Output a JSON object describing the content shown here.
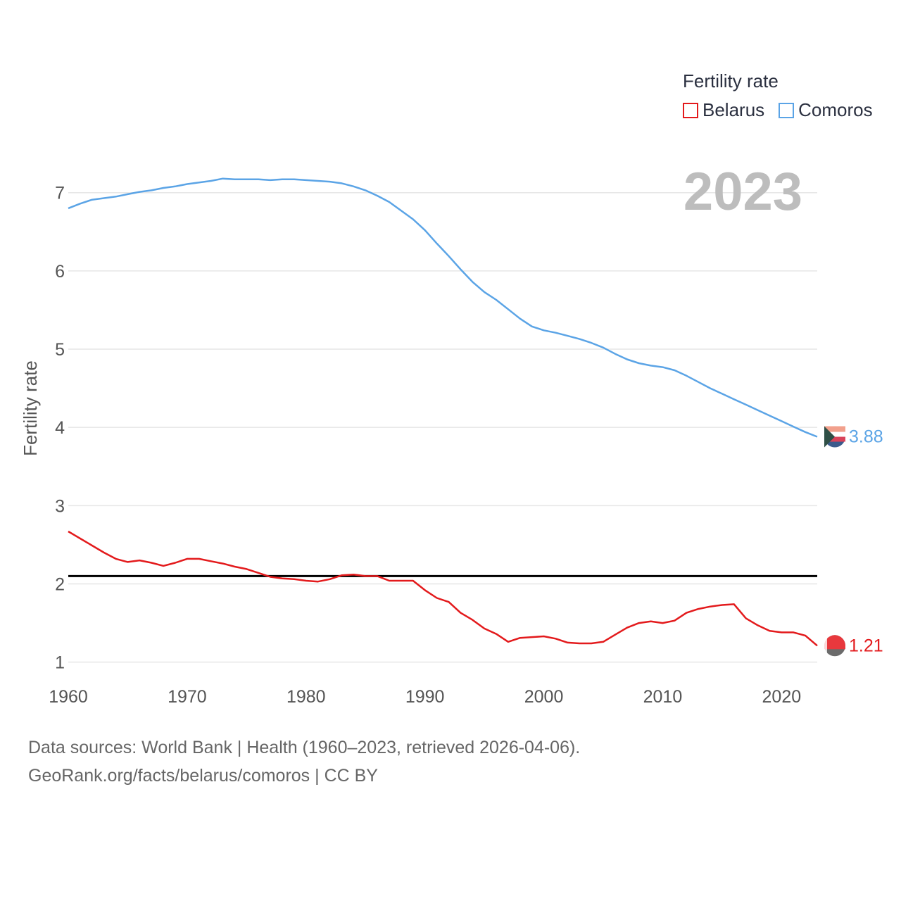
{
  "chart_data": {
    "type": "line",
    "title": "Fertility rate",
    "ylabel": "Fertility rate",
    "xlabel": "",
    "year_label": "2023",
    "xlim": [
      1960,
      2023
    ],
    "ylim": [
      0.7,
      7.6
    ],
    "xticks": [
      1960,
      1970,
      1980,
      1990,
      2000,
      2010,
      2020
    ],
    "yticks": [
      1,
      2,
      3,
      4,
      5,
      6,
      7
    ],
    "grid": true,
    "legend_position": "top-right",
    "reference_line": {
      "y": 2.1,
      "color": "#000000"
    },
    "x": [
      1960,
      1961,
      1962,
      1963,
      1964,
      1965,
      1966,
      1967,
      1968,
      1969,
      1970,
      1971,
      1972,
      1973,
      1974,
      1975,
      1976,
      1977,
      1978,
      1979,
      1980,
      1981,
      1982,
      1983,
      1984,
      1985,
      1986,
      1987,
      1988,
      1989,
      1990,
      1991,
      1992,
      1993,
      1994,
      1995,
      1996,
      1997,
      1998,
      1999,
      2000,
      2001,
      2002,
      2003,
      2004,
      2005,
      2006,
      2007,
      2008,
      2009,
      2010,
      2011,
      2012,
      2013,
      2014,
      2015,
      2016,
      2017,
      2018,
      2019,
      2020,
      2021,
      2022,
      2023
    ],
    "series": [
      {
        "name": "Belarus",
        "color": "#e31a1c",
        "end_label": "1.21",
        "flag": "belarus-flag-icon",
        "values": [
          2.67,
          2.58,
          2.49,
          2.4,
          2.32,
          2.28,
          2.3,
          2.27,
          2.23,
          2.27,
          2.32,
          2.32,
          2.29,
          2.26,
          2.22,
          2.19,
          2.14,
          2.09,
          2.07,
          2.06,
          2.04,
          2.03,
          2.06,
          2.11,
          2.12,
          2.1,
          2.1,
          2.04,
          2.04,
          2.04,
          1.92,
          1.82,
          1.77,
          1.63,
          1.54,
          1.43,
          1.36,
          1.26,
          1.31,
          1.32,
          1.33,
          1.3,
          1.25,
          1.24,
          1.24,
          1.26,
          1.35,
          1.44,
          1.5,
          1.52,
          1.5,
          1.53,
          1.63,
          1.68,
          1.71,
          1.73,
          1.74,
          1.56,
          1.47,
          1.4,
          1.38,
          1.38,
          1.34,
          1.21
        ]
      },
      {
        "name": "Comoros",
        "color": "#5ba4e6",
        "end_label": "3.88",
        "flag": "comoros-flag-icon",
        "values": [
          6.8,
          6.86,
          6.91,
          6.93,
          6.95,
          6.98,
          7.01,
          7.03,
          7.06,
          7.08,
          7.11,
          7.13,
          7.15,
          7.18,
          7.17,
          7.17,
          7.17,
          7.16,
          7.17,
          7.17,
          7.16,
          7.15,
          7.14,
          7.12,
          7.08,
          7.03,
          6.96,
          6.88,
          6.77,
          6.66,
          6.52,
          6.35,
          6.19,
          6.02,
          5.86,
          5.73,
          5.63,
          5.51,
          5.39,
          5.29,
          5.24,
          5.21,
          5.17,
          5.13,
          5.08,
          5.02,
          4.94,
          4.87,
          4.82,
          4.79,
          4.77,
          4.73,
          4.66,
          4.58,
          4.5,
          4.43,
          4.36,
          4.29,
          4.22,
          4.15,
          4.08,
          4.01,
          3.94,
          3.88
        ]
      }
    ]
  },
  "legend": {
    "title": "Fertility rate"
  },
  "source": {
    "line1": "Data sources: World Bank | Health (1960–2023, retrieved 2026-04-06).",
    "line2": "GeoRank.org/facts/belarus/comoros | CC BY"
  }
}
